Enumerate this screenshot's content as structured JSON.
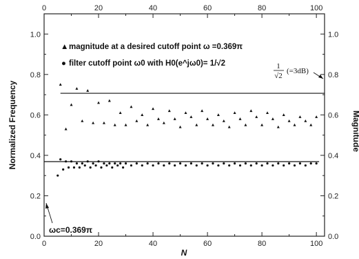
{
  "chart_data": {
    "type": "scatter",
    "title": "",
    "xlabel": "N",
    "ylabel_left": "Normalized Frequency",
    "ylabel_right": "Magnitude",
    "xlim": [
      0,
      103
    ],
    "ylim": [
      0,
      1.1
    ],
    "x_ticks": [
      "0",
      "20",
      "40",
      "60",
      "80",
      "100"
    ],
    "y_ticks": [
      "0.0",
      "0.2",
      "0.4",
      "0.6",
      "0.8",
      "1.0"
    ],
    "grid": false,
    "legend_placement": "top-left",
    "legend": [
      {
        "marker": "▲",
        "text": "magnitude at a desired cutoff point ω =0.369π"
      },
      {
        "marker": "●",
        "text": "filter cutoff point ω0 with H0(e^jω0)= 1/√2"
      }
    ],
    "reference_lines": [
      {
        "y": 0.707,
        "label": "1/√2 (=3dB)"
      },
      {
        "y": 0.369,
        "label": "ωc=0.369π"
      }
    ],
    "annotations": {
      "wc_label": "ωc=0.369π",
      "db_num": "1",
      "db_den": "√2",
      "db_suffix": "(=3dB)"
    },
    "series": [
      {
        "name": "magnitude at a desired cutoff point ω =0.369π",
        "marker": "triangle",
        "x": [
          6,
          8,
          10,
          12,
          14,
          16,
          18,
          20,
          22,
          24,
          26,
          28,
          30,
          32,
          34,
          36,
          38,
          40,
          42,
          44,
          46,
          48,
          50,
          52,
          54,
          56,
          58,
          60,
          62,
          64,
          66,
          68,
          70,
          72,
          74,
          76,
          78,
          80,
          82,
          84,
          86,
          88,
          90,
          92,
          94,
          96,
          98,
          100
        ],
        "y": [
          0.75,
          0.53,
          0.65,
          0.73,
          0.57,
          0.72,
          0.56,
          0.66,
          0.56,
          0.67,
          0.55,
          0.61,
          0.55,
          0.64,
          0.57,
          0.6,
          0.55,
          0.63,
          0.58,
          0.56,
          0.62,
          0.58,
          0.54,
          0.61,
          0.59,
          0.55,
          0.62,
          0.58,
          0.55,
          0.6,
          0.57,
          0.54,
          0.61,
          0.58,
          0.55,
          0.62,
          0.59,
          0.55,
          0.61,
          0.58,
          0.54,
          0.6,
          0.57,
          0.55,
          0.59,
          0.57,
          0.55,
          0.59
        ]
      },
      {
        "name": "filter cutoff point ω0 with H0(e^jω0)= 1/√2",
        "marker": "dot",
        "x": [
          5,
          6,
          7,
          8,
          9,
          10,
          11,
          12,
          13,
          14,
          15,
          16,
          17,
          18,
          19,
          20,
          21,
          22,
          23,
          24,
          25,
          26,
          27,
          28,
          29,
          30,
          32,
          34,
          36,
          38,
          40,
          42,
          44,
          46,
          48,
          50,
          52,
          54,
          56,
          58,
          60,
          62,
          64,
          66,
          68,
          70,
          72,
          74,
          76,
          78,
          80,
          82,
          84,
          86,
          88,
          90,
          92,
          94,
          96,
          98,
          100
        ],
        "y": [
          0.3,
          0.38,
          0.33,
          0.37,
          0.34,
          0.37,
          0.34,
          0.36,
          0.34,
          0.36,
          0.35,
          0.37,
          0.34,
          0.36,
          0.35,
          0.37,
          0.34,
          0.36,
          0.35,
          0.36,
          0.34,
          0.36,
          0.35,
          0.36,
          0.34,
          0.36,
          0.35,
          0.36,
          0.35,
          0.36,
          0.35,
          0.36,
          0.35,
          0.36,
          0.35,
          0.36,
          0.35,
          0.36,
          0.35,
          0.36,
          0.35,
          0.36,
          0.35,
          0.36,
          0.35,
          0.36,
          0.35,
          0.36,
          0.35,
          0.36,
          0.35,
          0.36,
          0.35,
          0.36,
          0.35,
          0.36,
          0.35,
          0.36,
          0.35,
          0.36,
          0.36
        ]
      }
    ]
  }
}
